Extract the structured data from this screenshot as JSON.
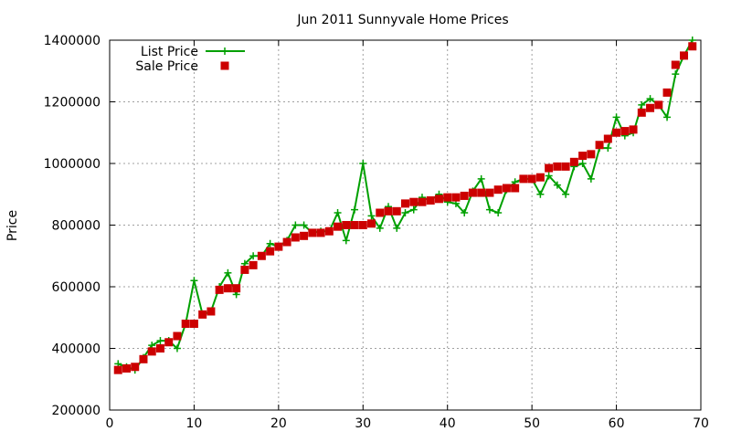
{
  "chart_data": {
    "type": "line",
    "title": "Jun 2011 Sunnyvale Home Prices",
    "xlabel": "",
    "ylabel": "Price",
    "xlim": [
      0,
      70
    ],
    "ylim": [
      200000,
      1400000
    ],
    "x_ticks": [
      "0",
      "10",
      "20",
      "30",
      "40",
      "50",
      "60",
      "70"
    ],
    "y_ticks": [
      "200000",
      "400000",
      "600000",
      "800000",
      "1000000",
      "1200000",
      "1400000"
    ],
    "grid": true,
    "legend_position": "top-left",
    "series": [
      {
        "name": "List Price",
        "style": "lines+plus-points",
        "color": "#00a000",
        "x": [
          1,
          2,
          3,
          4,
          5,
          6,
          7,
          8,
          9,
          10,
          11,
          12,
          13,
          14,
          15,
          16,
          17,
          18,
          19,
          20,
          21,
          22,
          23,
          24,
          25,
          26,
          27,
          28,
          29,
          30,
          31,
          32,
          33,
          34,
          35,
          36,
          37,
          38,
          39,
          40,
          41,
          42,
          43,
          44,
          45,
          46,
          47,
          48,
          49,
          50,
          51,
          52,
          53,
          54,
          55,
          56,
          57,
          58,
          59,
          60,
          61,
          62,
          63,
          64,
          65,
          66,
          67,
          68,
          69
        ],
        "values": [
          350000,
          340000,
          330000,
          370000,
          410000,
          425000,
          425000,
          400000,
          480000,
          620000,
          510000,
          520000,
          600000,
          645000,
          575000,
          675000,
          700000,
          700000,
          740000,
          730000,
          750000,
          800000,
          800000,
          775000,
          780000,
          780000,
          840000,
          750000,
          850000,
          1000000,
          830000,
          790000,
          860000,
          790000,
          840000,
          850000,
          890000,
          880000,
          900000,
          875000,
          870000,
          840000,
          910000,
          950000,
          850000,
          840000,
          915000,
          940000,
          950000,
          950000,
          900000,
          960000,
          930000,
          900000,
          990000,
          1000000,
          950000,
          1050000,
          1050000,
          1150000,
          1090000,
          1100000,
          1190000,
          1210000,
          1190000,
          1150000,
          1290000,
          1350000,
          1400000
        ]
      },
      {
        "name": "Sale Price",
        "style": "square-points",
        "color": "#cc0000",
        "x": [
          1,
          2,
          3,
          4,
          5,
          6,
          7,
          8,
          9,
          10,
          11,
          12,
          13,
          14,
          15,
          16,
          17,
          18,
          19,
          20,
          21,
          22,
          23,
          24,
          25,
          26,
          27,
          28,
          29,
          30,
          31,
          32,
          33,
          34,
          35,
          36,
          37,
          38,
          39,
          40,
          41,
          42,
          43,
          44,
          45,
          46,
          47,
          48,
          49,
          50,
          51,
          52,
          53,
          54,
          55,
          56,
          57,
          58,
          59,
          60,
          61,
          62,
          63,
          64,
          65,
          66,
          67,
          68,
          69
        ],
        "values": [
          330000,
          335000,
          340000,
          365000,
          390000,
          400000,
          420000,
          440000,
          480000,
          480000,
          510000,
          520000,
          590000,
          595000,
          595000,
          655000,
          670000,
          700000,
          715000,
          730000,
          745000,
          760000,
          765000,
          775000,
          775000,
          780000,
          795000,
          800000,
          800000,
          800000,
          805000,
          840000,
          845000,
          845000,
          870000,
          875000,
          875000,
          880000,
          885000,
          890000,
          890000,
          895000,
          905000,
          905000,
          905000,
          915000,
          920000,
          920000,
          950000,
          950000,
          955000,
          985000,
          990000,
          990000,
          1005000,
          1025000,
          1030000,
          1060000,
          1080000,
          1100000,
          1105000,
          1110000,
          1165000,
          1180000,
          1190000,
          1230000,
          1320000,
          1350000,
          1380000
        ]
      }
    ]
  }
}
